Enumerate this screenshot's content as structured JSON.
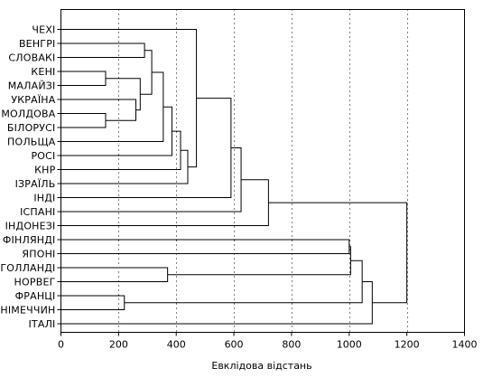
{
  "chart_data": {
    "type": "dendrogram",
    "orientation": "horizontal",
    "xlabel": "Евклідова відстань",
    "xlim": [
      0,
      1400
    ],
    "xticks": [
      0,
      200,
      400,
      600,
      800,
      1000,
      1200,
      1400
    ],
    "grid": "dotted",
    "leaves": [
      "ЧЕХІ",
      "ВЕНГРІ",
      "СЛОВАКІ",
      "КЕНІ",
      "МАЛАЙЗІ",
      "УКРАЇНА",
      "МОЛДОВА",
      "БІЛОРУСІ",
      "ПОЛЬЩА",
      "РОСІ",
      "КНР",
      "ІЗРАЇЛЬ",
      "ІНДІ",
      "ІСПАНІ",
      "ІНДОНЕЗІ",
      "ФІНЛЯНДІ",
      "ЯПОНІ",
      "ГОЛЛАНДІ",
      "НОРВЕГ",
      "ФРАНЦІ",
      "НІМЕЧЧИН",
      "ІТАЛІ"
    ],
    "merges": [
      {
        "id": "n1",
        "a": "ВЕНГРІ",
        "b": "СЛОВАКІ",
        "height": 290
      },
      {
        "id": "n2",
        "a": "КЕНІ",
        "b": "МАЛАЙЗІ",
        "height": 155
      },
      {
        "id": "n3",
        "a": "МОЛДОВА",
        "b": "БІЛОРУСІ",
        "height": 155
      },
      {
        "id": "n4",
        "a": "n3",
        "b": "УКРАЇНА",
        "height": 260
      },
      {
        "id": "n5",
        "a": "n2",
        "b": "n4",
        "height": 275
      },
      {
        "id": "n6",
        "a": "n1",
        "b": "n5",
        "height": 315
      },
      {
        "id": "n7",
        "a": "n6",
        "b": "ПОЛЬЩА",
        "height": 355
      },
      {
        "id": "n8",
        "a": "n7",
        "b": "РОСІ",
        "height": 385
      },
      {
        "id": "n9",
        "a": "n8",
        "b": "КНР",
        "height": 415
      },
      {
        "id": "n10",
        "a": "n9",
        "b": "ІЗРАЇЛЬ",
        "height": 440
      },
      {
        "id": "n11",
        "a": "ЧЕХІ",
        "b": "n10",
        "height": 470
      },
      {
        "id": "n12",
        "a": "n11",
        "b": "ІНДІ",
        "height": 590
      },
      {
        "id": "n13",
        "a": "n12",
        "b": "ІСПАНІ",
        "height": 625
      },
      {
        "id": "n14",
        "a": "n13",
        "b": "ІНДОНЕЗІ",
        "height": 720
      },
      {
        "id": "n15",
        "a": "ФІНЛЯНДІ",
        "b": "ЯПОНІ",
        "height": 1000
      },
      {
        "id": "n16",
        "a": "ГОЛЛАНДІ",
        "b": "НОРВЕГ",
        "height": 370
      },
      {
        "id": "n17",
        "a": "n15",
        "b": "n16",
        "height": 1005
      },
      {
        "id": "n18",
        "a": "ФРАНЦІ",
        "b": "НІМЕЧЧИН",
        "height": 220
      },
      {
        "id": "n19",
        "a": "n17",
        "b": "n18",
        "height": 1045
      },
      {
        "id": "n20",
        "a": "n19",
        "b": "ІТАЛІ",
        "height": 1080
      },
      {
        "id": "n21",
        "a": "n14",
        "b": "n20",
        "height": 1200
      }
    ]
  }
}
